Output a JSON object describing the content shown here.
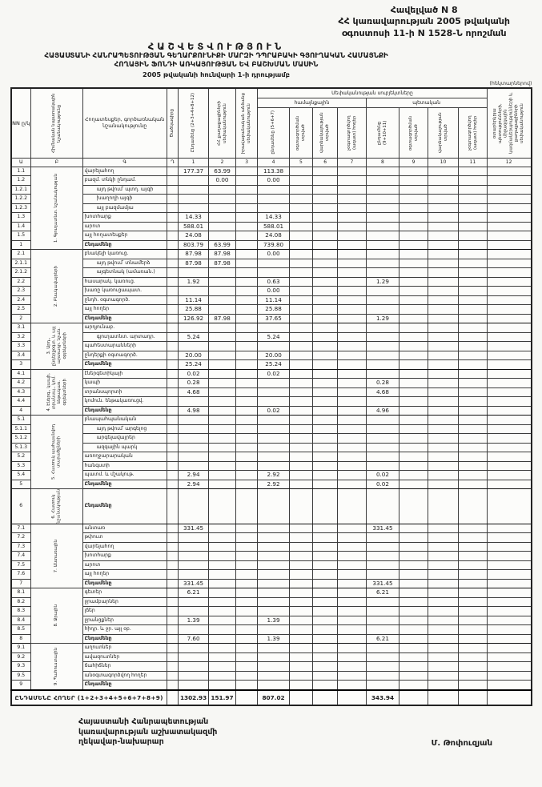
{
  "page": {
    "appendix_lines": [
      "Հավելված N 8",
      "ՀՀ կառավարության 2005 թվականի",
      "օգոստոսի 11-ի N 1528-Ն որոշման"
    ],
    "title": "ՀԱՇՎԵՏՎՈՒԹՅՈՒՆ",
    "subtitle1": "ՀԱՅԱՍՏԱՆԻ ՀԱՆՐԱՊԵՏՈՒԹՅԱՆ ԳԵՂԱՐՔՈՒՆԻՔԻ ՄԱՐԶԻ ԴՊՐԱԲԱԿԻ ԳՅՈՒՂԱԿԱՆ ՀԱՄԱՅՆՔԻ",
    "subtitle2": "ՀՈՂԱՅԻՆ ՖՈՆԴԻ ԱՌԿԱՅՈՒԹՅԱՆ ԵՎ ԲԱՇԽՄԱՆ ՄԱՍԻՆ",
    "subtitle3": "2005 թվականի հունվարի 1-ի դրությամբ",
    "units_note": "(հեկտարներով)"
  },
  "table": {
    "columns": {
      "nn": "NN ը/կ",
      "category": "Հիմնական նպատակային նշանակությունը",
      "landtype": "Հողատեսքեր, գործառնական նշանակությունը",
      "code": "Ծածկագիրը",
      "c1": "Ընդամենը (2+3+4+8+12)",
      "c2": "ՀՀ քաղաքացիների սեփականություն",
      "c3": "իրավաբանական անձանց սեփականություն",
      "c4": "ընդամենը (5+6+7)",
      "c5": "օգտագործման տրված",
      "c6": "վարձակալության տրված",
      "c7": "չօգտագործվող (ազատ) հողեր",
      "c8": "ընդամենը (9+10+11)",
      "c9": "օգտագործման տրված",
      "c10": "վարձակալության տրված",
      "c11": "չօգտագործվող (ազատ) հողեր",
      "c12": "օտարերկրյա պետությունների, միջազգային կազմակերպությունների և քաղաքացիների սեփականություն"
    },
    "groups": {
      "ownership": "Սեփականության սուբյեկտները",
      "community": "համայնքային",
      "state": "պետական"
    },
    "col_numbers": [
      "Ա",
      "Բ",
      "Գ",
      "Դ",
      "1",
      "2",
      "3",
      "4",
      "5",
      "6",
      "7",
      "8",
      "9",
      "10",
      "11",
      "12"
    ],
    "sections": [
      {
        "category": "1. Գյուղատնտ. նշանակության",
        "rows": [
          {
            "nn": "1.1",
            "label": "վարելահող",
            "v": {
              "c1": "177.37",
              "c2": "63.99",
              "c4": "113.38"
            }
          },
          {
            "nn": "1.2",
            "label": "բազմ. տնկի ընդամ.",
            "v": {
              "c2": "0.00",
              "c4": "0.00"
            }
          },
          {
            "nn": "1.2.1",
            "label": "այդ թվում՝ պտղ. այգի",
            "indent": 1
          },
          {
            "nn": "1.2.2",
            "label": "խաղողի այգի",
            "indent": 1
          },
          {
            "nn": "1.2.3",
            "label": "այլ բազմամյա",
            "indent": 1
          },
          {
            "nn": "1.3",
            "label": "խոտհարք",
            "v": {
              "c1": "14.33",
              "c4": "14.33"
            }
          },
          {
            "nn": "1.4",
            "label": "արոտ",
            "v": {
              "c1": "588.01",
              "c4": "588.01"
            }
          },
          {
            "nn": "1.5",
            "label": "այլ հողատեսքեր",
            "v": {
              "c1": "24.08",
              "c4": "24.08"
            }
          },
          {
            "nn": "1",
            "label": "Ընդամենը",
            "total": true,
            "v": {
              "c1": "803.79",
              "c2": "63.99",
              "c4": "739.80"
            }
          }
        ]
      },
      {
        "category": "2. Բնակավայրերի",
        "rows": [
          {
            "nn": "2.1",
            "label": "բնակելի կառուց.",
            "v": {
              "c1": "87.98",
              "c2": "87.98",
              "c4": "0.00"
            }
          },
          {
            "nn": "2.1.1",
            "label": "այդ թվում՝ տնամերձ",
            "indent": 1,
            "v": {
              "c1": "87.98",
              "c2": "87.98"
            }
          },
          {
            "nn": "2.1.2",
            "label": "այգետնակ (ամառան.)",
            "indent": 1
          },
          {
            "nn": "2.2",
            "label": "հասարակ. կառուց.",
            "v": {
              "c1": "1.92",
              "c4": "0.63",
              "c8": "1.29"
            }
          },
          {
            "nn": "2.3",
            "label": "խառը կառուցապատ.",
            "v": {
              "c4": "0.00"
            }
          },
          {
            "nn": "2.4",
            "label": "ընդհ. օգտագործ.",
            "v": {
              "c1": "11.14",
              "c4": "11.14"
            }
          },
          {
            "nn": "2.5",
            "label": "այլ հողեր",
            "v": {
              "c1": "25.88",
              "c4": "25.88"
            }
          },
          {
            "nn": "2",
            "label": "Ընդամենը",
            "total": true,
            "v": {
              "c1": "126.92",
              "c2": "87.98",
              "c4": "37.65",
              "c8": "1.29"
            }
          }
        ]
      },
      {
        "category": "3. Արդ., ընդերքօգտ. և այլ արտադր. նշան. օբյեկտների",
        "rows": [
          {
            "nn": "3.1",
            "label": "արդյունաբ."
          },
          {
            "nn": "3.2",
            "label": "գյուղատնտ. արտադր.",
            "indent": 1,
            "v": {
              "c1": "5.24",
              "c4": "5.24"
            }
          },
          {
            "nn": "3.3",
            "label": "պահեստարանների"
          },
          {
            "nn": "3.4",
            "label": "ընդերքի օգտագործ.",
            "v": {
              "c1": "20.00",
              "c4": "20.00"
            }
          },
          {
            "nn": "3",
            "label": "Ընդամենը",
            "total": true,
            "v": {
              "c1": "25.24",
              "c4": "25.24"
            }
          }
        ]
      },
      {
        "category": "4. Էներգ., կապի, տրանսպ., կոմ. ենթակառ. օբյեկտների",
        "rows": [
          {
            "nn": "4.1",
            "label": "էներգետիկայի",
            "v": {
              "c1": "0.02",
              "c4": "0.02"
            }
          },
          {
            "nn": "4.2",
            "label": "կապի",
            "v": {
              "c1": "0.28",
              "c8": "0.28"
            }
          },
          {
            "nn": "4.3",
            "label": "տրանսպորտի",
            "v": {
              "c1": "4.68",
              "c8": "4.68"
            }
          },
          {
            "nn": "4.4",
            "label": "կոմուն. ենթակառուցվ."
          },
          {
            "nn": "4",
            "label": "Ընդամենը",
            "total": true,
            "v": {
              "c1": "4.98",
              "c4": "0.02",
              "c8": "4.96"
            }
          }
        ]
      },
      {
        "category": "5. Հատուկ պահպանվող տարածքների",
        "rows": [
          {
            "nn": "5.1",
            "label": "բնապահպանական"
          },
          {
            "nn": "5.1.1",
            "label": "այդ թվում՝ արգելոց",
            "indent": 1
          },
          {
            "nn": "5.1.2",
            "label": "արգելավայրեր",
            "indent": 1
          },
          {
            "nn": "5.1.3",
            "label": "ազգային պարկ",
            "indent": 1
          },
          {
            "nn": "5.2",
            "label": "առողջարարական"
          },
          {
            "nn": "5.3",
            "label": "հանգստի"
          },
          {
            "nn": "5.4",
            "label": "պատմ. և մշակութ.",
            "v": {
              "c1": "2.94",
              "c4": "2.92",
              "c8": "0.02"
            }
          },
          {
            "nn": "5",
            "label": "Ընդամենը",
            "total": true,
            "v": {
              "c1": "2.94",
              "c4": "2.92",
              "c8": "0.02"
            }
          }
        ]
      },
      {
        "category": "6. Հատուկ նշանակության",
        "tall": true,
        "rows": [
          {
            "nn": "6",
            "label": "Ընդամենը",
            "total": true
          }
        ]
      },
      {
        "category": "7. Անտառային",
        "rows": [
          {
            "nn": "7.1",
            "label": "անտառ",
            "v": {
              "c1": "331.45",
              "c8": "331.45"
            }
          },
          {
            "nn": "7.2",
            "label": "թփուտ"
          },
          {
            "nn": "7.3",
            "label": "վարելահող"
          },
          {
            "nn": "7.4",
            "label": "խոտհարք"
          },
          {
            "nn": "7.5",
            "label": "արոտ"
          },
          {
            "nn": "7.6",
            "label": "այլ հողեր"
          },
          {
            "nn": "7",
            "label": "Ընդամենը",
            "total": true,
            "v": {
              "c1": "331.45",
              "c8": "331.45"
            }
          }
        ]
      },
      {
        "category": "8. Ջրային",
        "rows": [
          {
            "nn": "8.1",
            "label": "գետեր",
            "v": {
              "c1": "6.21",
              "c8": "6.21"
            }
          },
          {
            "nn": "8.2",
            "label": "ջրամբարներ"
          },
          {
            "nn": "8.3",
            "label": "լճեր"
          },
          {
            "nn": "8.4",
            "label": "ջրանցքներ",
            "v": {
              "c1": "1.39",
              "c4": "1.39"
            }
          },
          {
            "nn": "8.5",
            "label": "հիդր. և ջր. այլ օբ."
          },
          {
            "nn": "8",
            "label": "Ընդամենը",
            "total": true,
            "v": {
              "c1": "7.60",
              "c4": "1.39",
              "c8": "6.21"
            }
          }
        ]
      },
      {
        "category": "9. Պահուստային",
        "rows": [
          {
            "nn": "9.1",
            "label": "աղուտներ"
          },
          {
            "nn": "9.2",
            "label": "ավազուտներ"
          },
          {
            "nn": "9.3",
            "label": "ճահիճներ"
          },
          {
            "nn": "9.5",
            "label": "անօգտագործվող հողեր"
          },
          {
            "nn": "9",
            "label": "Ընդամենը",
            "total": true
          }
        ]
      }
    ],
    "grand_total": {
      "label": "ԸՆԴԱՄԵՆԸ ՀՈՂԵՐ (1+2+3+4+5+6+7+8+9)",
      "v": {
        "c1": "1302.93",
        "c2": "151.97",
        "c4": "807.02",
        "c8": "343.94"
      }
    }
  },
  "footer": {
    "org_lines": [
      "Հայաստանի Հանրապետության",
      "կառավարության աշխատակազմի",
      "ղեկավար-նախարար"
    ],
    "signature": "Մ. Թոփուզյան"
  }
}
